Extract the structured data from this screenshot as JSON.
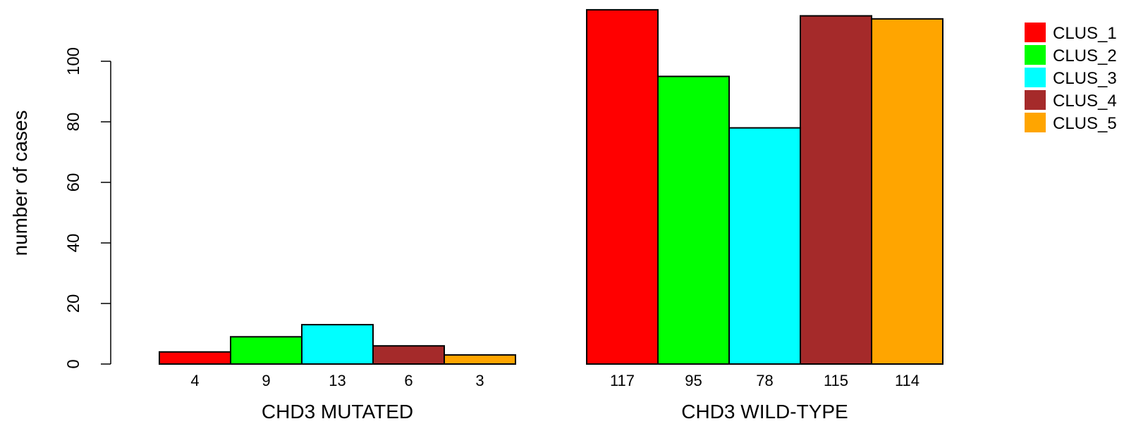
{
  "chart_data": {
    "type": "bar",
    "ylabel": "number of cases",
    "ylim": [
      0,
      117
    ],
    "yticks": [
      0,
      20,
      40,
      60,
      80,
      100
    ],
    "grid": false,
    "legend_position": "top-right",
    "series": [
      {
        "name": "CLUS_1",
        "color": "#FF0000"
      },
      {
        "name": "CLUS_2",
        "color": "#00FF00"
      },
      {
        "name": "CLUS_3",
        "color": "#00FFFF"
      },
      {
        "name": "CLUS_4",
        "color": "#A52A2A"
      },
      {
        "name": "CLUS_5",
        "color": "#FFA500"
      }
    ],
    "groups": [
      {
        "name": "CHD3 MUTATED",
        "values": [
          4,
          9,
          13,
          6,
          3
        ]
      },
      {
        "name": "CHD3 WILD-TYPE",
        "values": [
          117,
          95,
          78,
          115,
          114
        ]
      }
    ]
  }
}
